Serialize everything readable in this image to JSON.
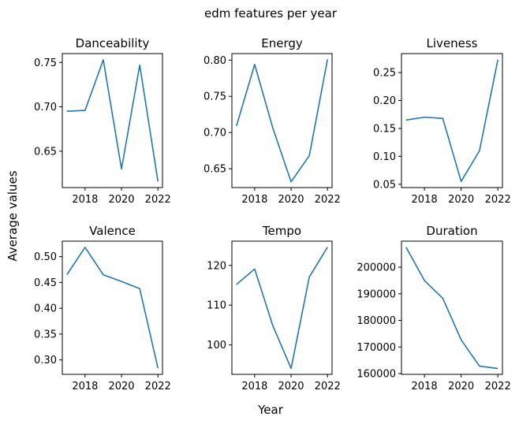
{
  "figure": {
    "suptitle": "edm features per year",
    "supxlabel": "Year",
    "supylabel": "Average values"
  },
  "colors": {
    "line": "#1f77b4",
    "axes": "#000000",
    "background": "#ffffff"
  },
  "chart_data": [
    {
      "type": "line",
      "title": "Danceability",
      "x": [
        2017,
        2018,
        2019,
        2020,
        2021,
        2022
      ],
      "y": [
        0.695,
        0.696,
        0.753,
        0.63,
        0.747,
        0.616
      ],
      "xlim": [
        2016.75,
        2022.25
      ],
      "ylim": [
        0.609,
        0.76
      ],
      "xticks": [
        2018,
        2020,
        2022
      ],
      "yticks": [
        0.65,
        0.7,
        0.75
      ],
      "ytick_labels": [
        "0.65",
        "0.70",
        "0.75"
      ]
    },
    {
      "type": "line",
      "title": "Energy",
      "x": [
        2017,
        2018,
        2019,
        2020,
        2021,
        2022
      ],
      "y": [
        0.709,
        0.794,
        0.706,
        0.632,
        0.668,
        0.801
      ],
      "xlim": [
        2016.75,
        2022.25
      ],
      "ylim": [
        0.624,
        0.809
      ],
      "xticks": [
        2018,
        2020,
        2022
      ],
      "yticks": [
        0.65,
        0.7,
        0.75,
        0.8
      ],
      "ytick_labels": [
        "0.65",
        "0.70",
        "0.75",
        "0.80"
      ]
    },
    {
      "type": "line",
      "title": "Liveness",
      "x": [
        2017,
        2018,
        2019,
        2020,
        2021,
        2022
      ],
      "y": [
        0.165,
        0.17,
        0.168,
        0.055,
        0.11,
        0.273
      ],
      "xlim": [
        2016.75,
        2022.25
      ],
      "ylim": [
        0.044,
        0.284
      ],
      "xticks": [
        2018,
        2020,
        2022
      ],
      "yticks": [
        0.05,
        0.1,
        0.15,
        0.2,
        0.25
      ],
      "ytick_labels": [
        "0.05",
        "0.10",
        "0.15",
        "0.20",
        "0.25"
      ]
    },
    {
      "type": "line",
      "title": "Valence",
      "x": [
        2017,
        2018,
        2019,
        2020,
        2021,
        2022
      ],
      "y": [
        0.465,
        0.518,
        0.465,
        0.452,
        0.438,
        0.284
      ],
      "xlim": [
        2016.75,
        2022.25
      ],
      "ylim": [
        0.272,
        0.53
      ],
      "xticks": [
        2018,
        2020,
        2022
      ],
      "yticks": [
        0.3,
        0.35,
        0.4,
        0.45,
        0.5
      ],
      "ytick_labels": [
        "0.30",
        "0.35",
        "0.40",
        "0.45",
        "0.50"
      ]
    },
    {
      "type": "line",
      "title": "Tempo",
      "x": [
        2017,
        2018,
        2019,
        2020,
        2021,
        2022
      ],
      "y": [
        115.2,
        119.1,
        104.8,
        94.1,
        117.1,
        124.6
      ],
      "xlim": [
        2016.75,
        2022.25
      ],
      "ylim": [
        92.6,
        126.1
      ],
      "xticks": [
        2018,
        2020,
        2022
      ],
      "yticks": [
        100,
        110,
        120
      ],
      "ytick_labels": [
        "100",
        "110",
        "120"
      ]
    },
    {
      "type": "line",
      "title": "Duration",
      "x": [
        2017,
        2018,
        2019,
        2020,
        2021,
        2022
      ],
      "y": [
        207500,
        195000,
        188300,
        172700,
        162800,
        161900
      ],
      "xlim": [
        2016.75,
        2022.25
      ],
      "ylim": [
        159700,
        209800
      ],
      "xticks": [
        2018,
        2020,
        2022
      ],
      "yticks": [
        160000,
        170000,
        180000,
        190000,
        200000
      ],
      "ytick_labels": [
        "160000",
        "170000",
        "180000",
        "190000",
        "200000"
      ]
    }
  ]
}
